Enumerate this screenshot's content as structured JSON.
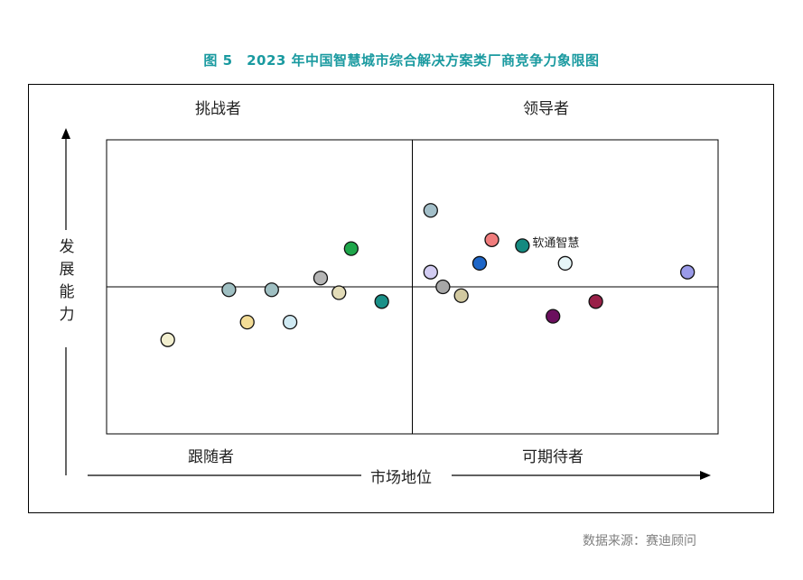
{
  "title": "图 5　2023 年中国智慧城市综合解决方案类厂商竞争力象限图",
  "source": "数据来源：赛迪顾问",
  "chart_data": {
    "type": "scatter",
    "title": "图 5　2023 年中国智慧城市综合解决方案类厂商竞争力象限图",
    "xlabel": "市场地位",
    "ylabel": "发展能力",
    "quadrants": {
      "top_left": "挑战者",
      "top_right": "领导者",
      "bottom_left": "跟随者",
      "bottom_right": "可期待者"
    },
    "xlim": [
      0,
      10
    ],
    "ylim": [
      0,
      10
    ],
    "grid": false,
    "points": [
      {
        "x": 1.0,
        "y": 3.2,
        "color": "#f2efcf"
      },
      {
        "x": 2.0,
        "y": 4.9,
        "color": "#9fbfc2"
      },
      {
        "x": 2.3,
        "y": 3.8,
        "color": "#f3dc96"
      },
      {
        "x": 2.7,
        "y": 4.9,
        "color": "#9fbfc2"
      },
      {
        "x": 3.0,
        "y": 3.8,
        "color": "#cfe9f2"
      },
      {
        "x": 3.5,
        "y": 5.3,
        "color": "#b5b5b5"
      },
      {
        "x": 4.0,
        "y": 6.3,
        "color": "#1ea64a"
      },
      {
        "x": 3.8,
        "y": 4.8,
        "color": "#e3dcb8"
      },
      {
        "x": 4.5,
        "y": 4.5,
        "color": "#1a9088"
      },
      {
        "x": 5.3,
        "y": 7.6,
        "color": "#a3bfc9"
      },
      {
        "x": 5.3,
        "y": 5.5,
        "color": "#d2ccf2"
      },
      {
        "x": 5.5,
        "y": 5.0,
        "color": "#a7a7a7"
      },
      {
        "x": 5.8,
        "y": 4.7,
        "color": "#d2c9a0"
      },
      {
        "x": 6.1,
        "y": 5.8,
        "color": "#1d66c8"
      },
      {
        "x": 6.3,
        "y": 6.6,
        "color": "#f07c7c"
      },
      {
        "x": 6.8,
        "y": 6.4,
        "color": "#148a80",
        "label": "软通智慧"
      },
      {
        "x": 7.3,
        "y": 4.0,
        "color": "#6b0f5e"
      },
      {
        "x": 7.5,
        "y": 5.8,
        "color": "#e6f6f8"
      },
      {
        "x": 8.0,
        "y": 4.5,
        "color": "#992048"
      },
      {
        "x": 9.5,
        "y": 5.5,
        "color": "#9a9ae8"
      }
    ]
  }
}
